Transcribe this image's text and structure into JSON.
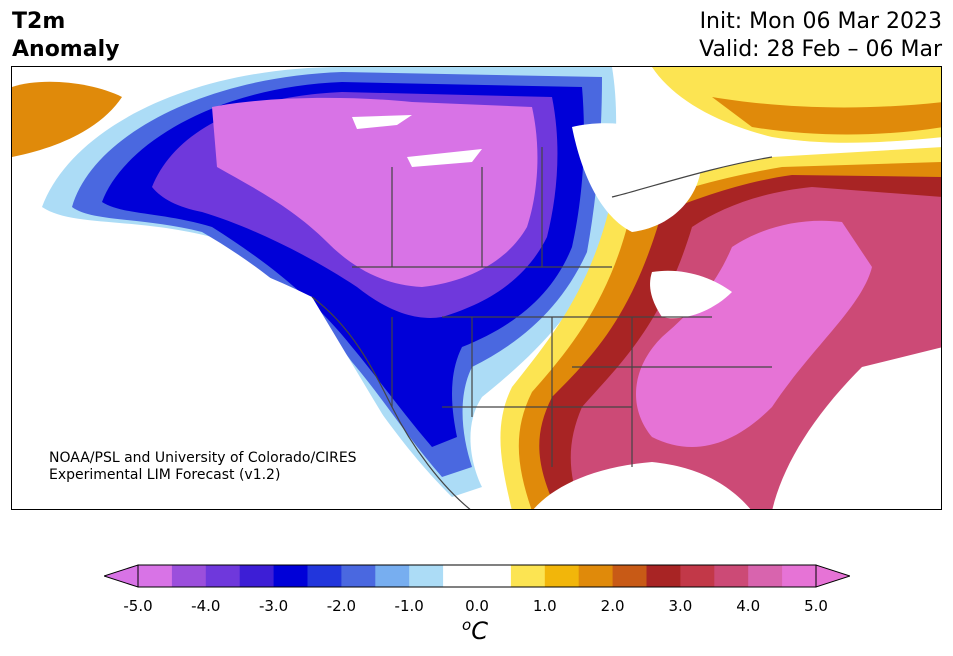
{
  "title": {
    "line1": "T2m",
    "line2": "Anomaly"
  },
  "dates": {
    "init": "Init: Mon 06 Mar 2023",
    "valid": "Valid: 28 Feb – 06 Mar"
  },
  "credit": {
    "line1": "NOAA/PSL and University of Colorado/CIRES",
    "line2": "Experimental LIM Forecast (v1.2)"
  },
  "colorbar": {
    "unit_base": "C",
    "unit_sup": "o",
    "ticks": [
      "-5.0",
      "-4.0",
      "-3.0",
      "-2.0",
      "-1.0",
      "0.0",
      "1.0",
      "2.0",
      "3.0",
      "4.0",
      "5.0"
    ],
    "colors": [
      "#d873e6",
      "#9b4fdc",
      "#6f38dc",
      "#3d1ed6",
      "#0000d8",
      "#2236dc",
      "#4a68e0",
      "#77aef0",
      "#acdcf6",
      "#ffffff",
      "#ffffff",
      "#fce452",
      "#f2b60a",
      "#e08a0a",
      "#c85a16",
      "#a82424",
      "#c23848",
      "#cc4a76",
      "#d864ae",
      "#e673d6"
    ],
    "under_color": "#d873e6",
    "over_color": "#e673d6"
  },
  "map": {
    "region": "North America",
    "variable": "2m temperature anomaly",
    "land_white": "#ffffff",
    "border_color": "#444444"
  }
}
